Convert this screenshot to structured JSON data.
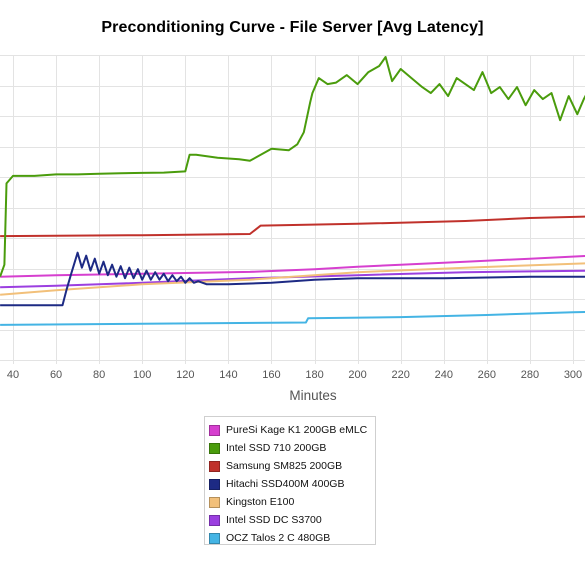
{
  "chart_data": {
    "type": "line",
    "title": "Preconditioning Curve - File Server [Avg Latency]",
    "xlabel": "Minutes",
    "ylabel": "",
    "xlim": [
      34,
      308
    ],
    "x_ticks": [
      40,
      60,
      80,
      100,
      120,
      140,
      160,
      180,
      200,
      220,
      240,
      260,
      280,
      300
    ],
    "ylim": [
      0,
      100
    ],
    "grid": true,
    "legend_position": "bottom",
    "series": [
      {
        "name": "PureSi Kage K1 200GB eMLC",
        "color": "#d63fcf",
        "x": [
          34,
          60,
          100,
          150,
          180,
          200,
          220,
          250,
          280,
          308
        ],
        "y": [
          27.0,
          27.5,
          28.0,
          28.6,
          29.5,
          30.3,
          31.0,
          32.0,
          33.0,
          34.0
        ]
      },
      {
        "name": "Intel SSD 710 200GB",
        "color": "#4a9c0c",
        "x": [
          34,
          36,
          37,
          40,
          50,
          60,
          70,
          80,
          90,
          100,
          110,
          120,
          122,
          125,
          135,
          145,
          150,
          160,
          168,
          172,
          175,
          178,
          179,
          182,
          186,
          190,
          195,
          200,
          205,
          210,
          213,
          216,
          220,
          225,
          230,
          234,
          238,
          242,
          246,
          250,
          254,
          258,
          262,
          266,
          270,
          274,
          278,
          282,
          286,
          290,
          294,
          298,
          302,
          305,
          308
        ],
        "y": [
          27,
          31,
          58,
          60.5,
          60.5,
          61,
          61,
          61.2,
          61.4,
          61.5,
          61.6,
          62,
          67.5,
          67.5,
          66.5,
          66,
          65.5,
          69.5,
          69,
          71,
          75,
          85,
          88,
          93,
          91,
          91.5,
          94,
          91,
          95,
          97,
          100,
          92,
          96,
          93,
          90,
          88,
          91,
          87,
          93,
          91,
          89,
          95,
          88,
          90,
          86,
          90,
          84,
          89,
          86,
          88,
          79,
          87,
          81,
          86,
          90
        ]
      },
      {
        "name": "Samsung SM825 200GB",
        "color": "#c0312b",
        "x": [
          34,
          100,
          150,
          155,
          200,
          250,
          280,
          308
        ],
        "y": [
          40.5,
          40.8,
          41.2,
          44.0,
          44.6,
          45.5,
          46.5,
          47.0
        ]
      },
      {
        "name": "Hitachi SSD400M 400GB",
        "color": "#1d2a84",
        "x": [
          34,
          63,
          65,
          67,
          70,
          72,
          74,
          76,
          78,
          80,
          82,
          84,
          86,
          88,
          90,
          92,
          94,
          96,
          98,
          100,
          102,
          104,
          106,
          108,
          110,
          112,
          114,
          116,
          118,
          120,
          122,
          124,
          126,
          130,
          140,
          160,
          180,
          200,
          240,
          280,
          308
        ],
        "y": [
          17.5,
          17.5,
          23,
          28,
          35,
          30,
          34,
          29,
          33,
          28,
          32,
          27.5,
          31,
          27,
          30.5,
          26.5,
          30,
          26.5,
          29.5,
          26,
          29,
          26,
          28.5,
          26,
          28,
          25.5,
          27.5,
          25.5,
          27,
          25,
          26.5,
          25,
          25.5,
          24.5,
          24.5,
          25,
          26,
          26.5,
          26.5,
          27.0,
          27.0
        ]
      },
      {
        "name": "Kingston E100",
        "color": "#f2c07a",
        "x": [
          34,
          60,
          100,
          150,
          200,
          250,
          308
        ],
        "y": [
          21.0,
          22.5,
          24.5,
          26.0,
          28.5,
          30.0,
          31.5
        ]
      },
      {
        "name": "Intel SSD DC S3700",
        "color": "#9b3fe0",
        "x": [
          34,
          60,
          100,
          150,
          200,
          250,
          308
        ],
        "y": [
          23.5,
          24.0,
          25.0,
          26.5,
          27.5,
          28.5,
          29.0
        ]
      },
      {
        "name": "OCZ Talos 2 C 480GB",
        "color": "#44b4e4",
        "x": [
          34,
          100,
          176,
          177,
          220,
          260,
          300,
          308
        ],
        "y": [
          11.0,
          11.4,
          11.8,
          13.2,
          13.6,
          14.3,
          15.2,
          15.3
        ]
      }
    ]
  }
}
